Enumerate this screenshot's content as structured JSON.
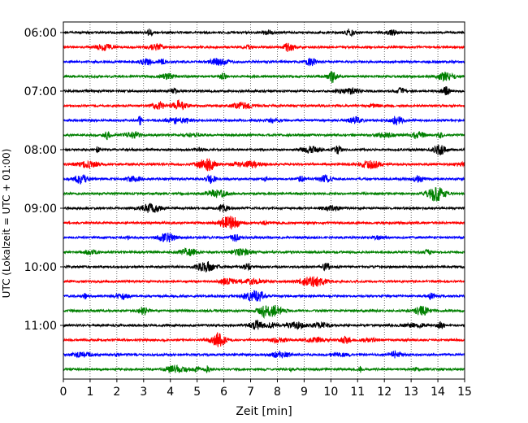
{
  "chart_data": {
    "type": "line",
    "title": "",
    "xlabel": "Zeit  [min]",
    "ylabel": "UTC (Lokalzeit = UTC + 01:00)",
    "xlim": [
      0,
      15
    ],
    "x_ticks": [
      "0",
      "1",
      "2",
      "3",
      "4",
      "5",
      "6",
      "7",
      "8",
      "9",
      "10",
      "11",
      "12",
      "13",
      "14",
      "15"
    ],
    "y_tick_labels": [
      "06:00",
      "07:00",
      "08:00",
      "09:00",
      "10:00",
      "11:00"
    ],
    "grid": "vertical-dotted",
    "colors": [
      "#000000",
      "#ff0000",
      "#0000ff",
      "#008000"
    ],
    "series": [
      {
        "start": "06:00",
        "color": "#000000"
      },
      {
        "start": "06:15",
        "color": "#ff0000"
      },
      {
        "start": "06:30",
        "color": "#0000ff"
      },
      {
        "start": "06:45",
        "color": "#008000"
      },
      {
        "start": "07:00",
        "color": "#000000"
      },
      {
        "start": "07:15",
        "color": "#ff0000"
      },
      {
        "start": "07:30",
        "color": "#0000ff"
      },
      {
        "start": "07:45",
        "color": "#008000"
      },
      {
        "start": "08:00",
        "color": "#000000"
      },
      {
        "start": "08:15",
        "color": "#ff0000"
      },
      {
        "start": "08:30",
        "color": "#0000ff"
      },
      {
        "start": "08:45",
        "color": "#008000"
      },
      {
        "start": "09:00",
        "color": "#000000"
      },
      {
        "start": "09:15",
        "color": "#ff0000"
      },
      {
        "start": "09:30",
        "color": "#0000ff"
      },
      {
        "start": "09:45",
        "color": "#008000"
      },
      {
        "start": "10:00",
        "color": "#000000"
      },
      {
        "start": "10:15",
        "color": "#ff0000"
      },
      {
        "start": "10:30",
        "color": "#0000ff"
      },
      {
        "start": "10:45",
        "color": "#008000"
      },
      {
        "start": "11:00",
        "color": "#000000"
      },
      {
        "start": "11:15",
        "color": "#ff0000"
      },
      {
        "start": "11:30",
        "color": "#0000ff"
      },
      {
        "start": "11:45",
        "color": "#008000"
      }
    ]
  }
}
